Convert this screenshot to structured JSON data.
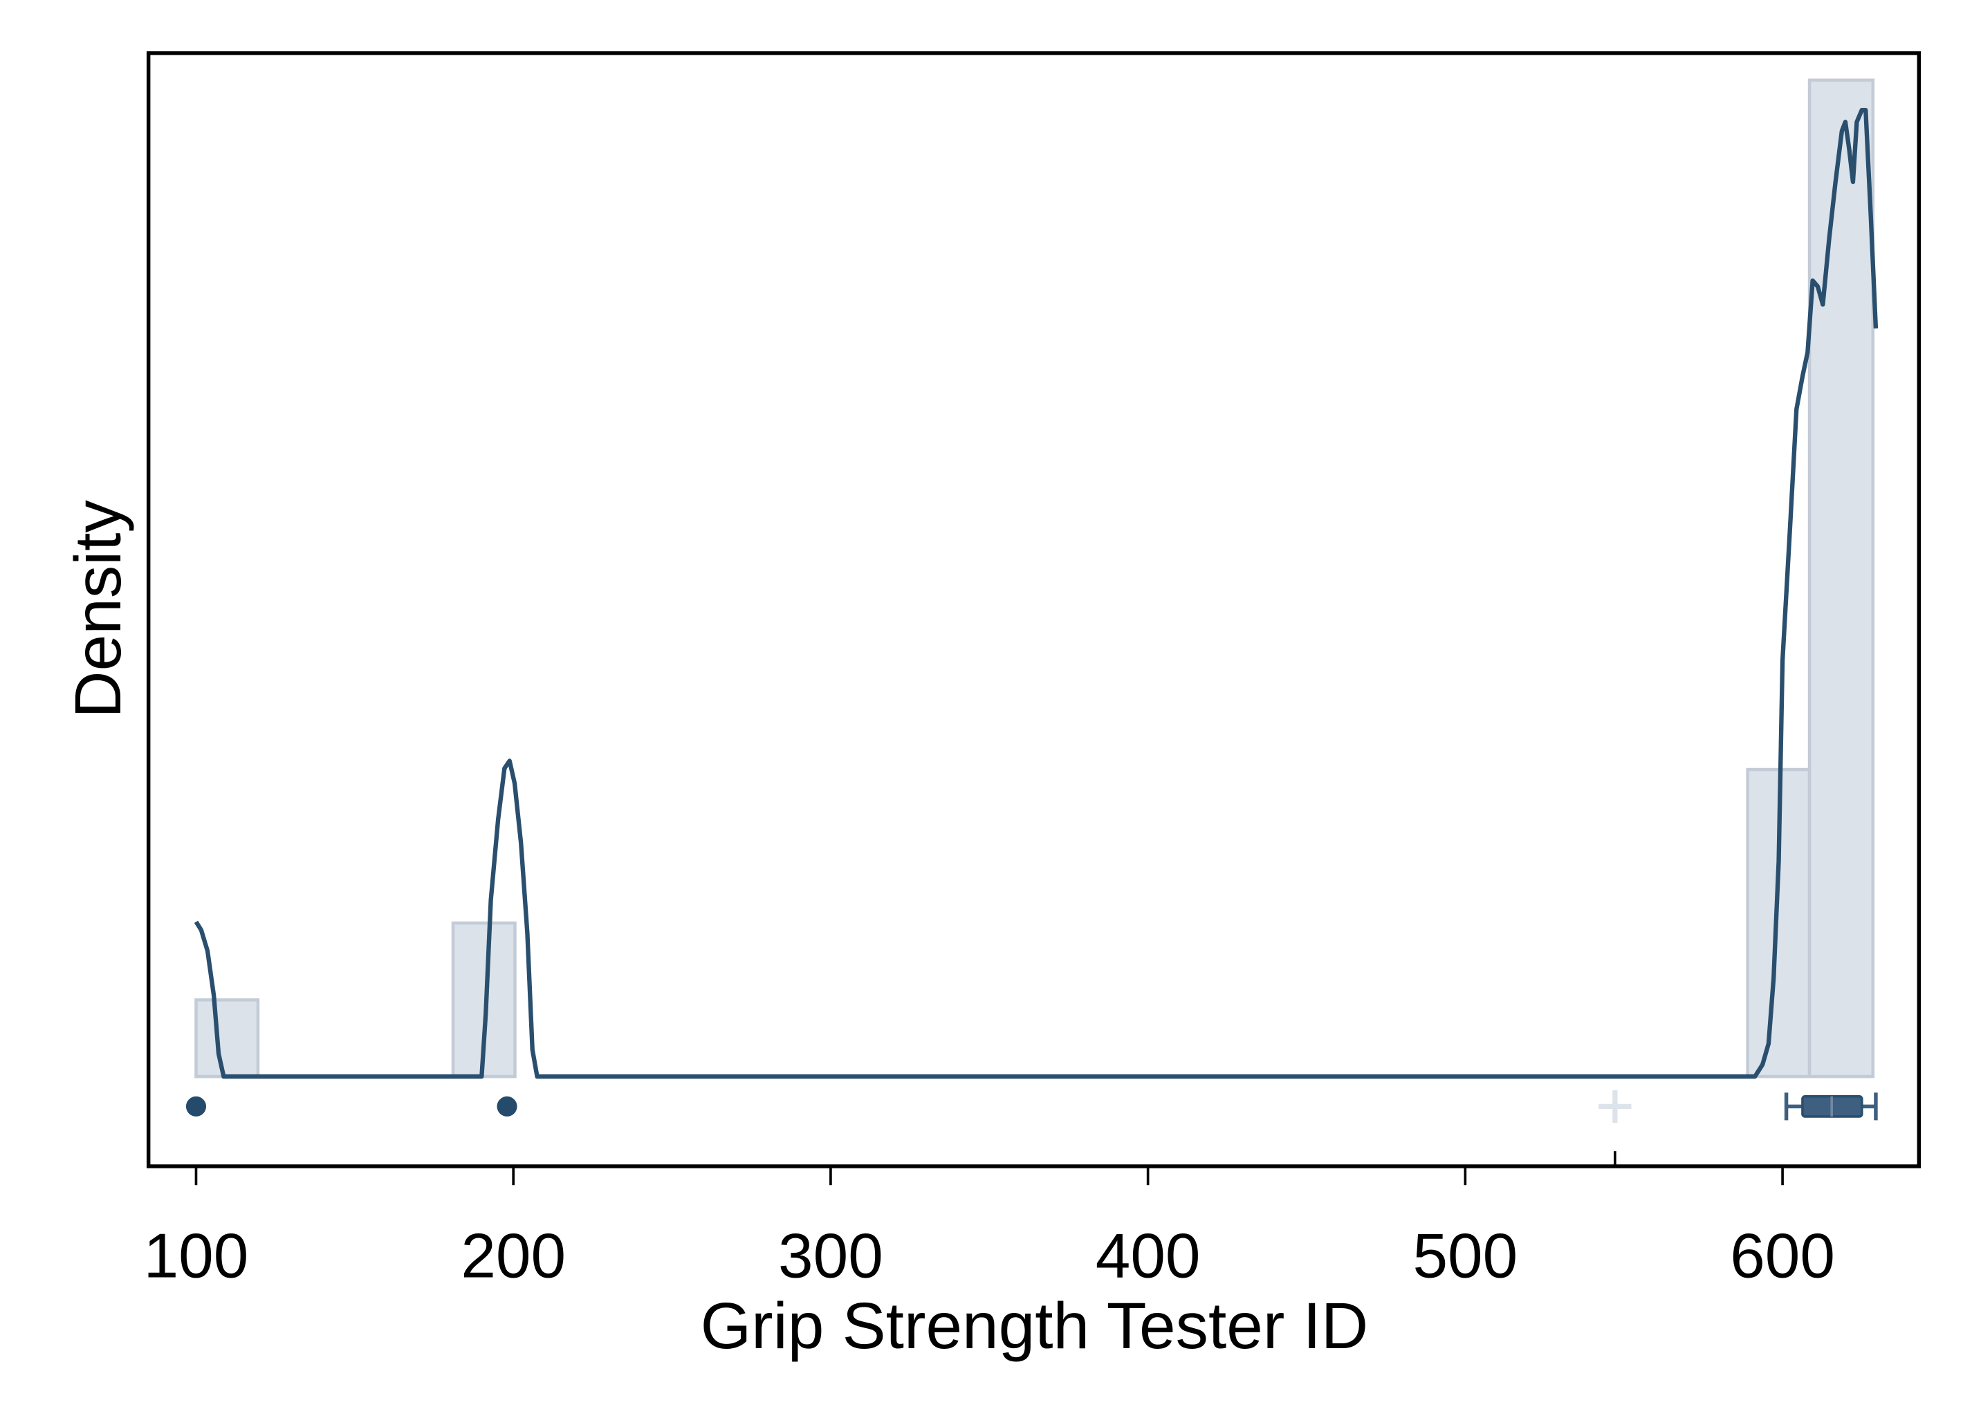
{
  "chart_data": {
    "type": "histogram",
    "x_label": "Grip Strength Tester ID",
    "y_label": "Density",
    "bins": [
      100,
      119.5,
      181,
      200.5,
      589,
      608.5,
      628.5
    ],
    "values": [
      0.00256,
      0,
      0.00513,
      0,
      0.01026,
      0.0333
    ],
    "color": "#dbe2ea",
    "edge_color": "#c3ccd6",
    "kde": {
      "color": "#2a4f6e",
      "x": [
        100,
        101.6,
        103.6,
        105.6,
        107.1,
        108.7,
        190,
        191.3,
        192.9,
        195.2,
        197.2,
        198.8,
        200.4,
        202.4,
        204.4,
        206,
        207.5,
        591.3,
        593.7,
        595.6,
        597.2,
        598.8,
        600,
        602.4,
        604.4,
        606.3,
        607.9,
        609.5,
        611.1,
        612.7,
        614.7,
        616.7,
        618.7,
        619.8,
        621,
        622.2,
        623.4,
        625,
        626.2,
        627.8,
        629.4
      ],
      "values": [
        0.00517,
        0.0049,
        0.0042,
        0.0027,
        0.00076,
        0,
        0,
        0.0021,
        0.0059,
        0.0086,
        0.0103,
        0.01055,
        0.0098,
        0.0078,
        0.0048,
        0.0009,
        0,
        0,
        0.0004,
        0.0011,
        0.0033,
        0.0072,
        0.0139,
        0.0184,
        0.0223,
        0.0234,
        0.0242,
        0.0266,
        0.0264,
        0.0258,
        0.028,
        0.0299,
        0.0316,
        0.0319,
        0.031,
        0.0299,
        0.0319,
        0.0323,
        0.0323,
        0.0288,
        0.025
      ]
    },
    "boxplot": {
      "color": "#3f5f80",
      "mean_color": "#dde3ea",
      "level": -0.001,
      "whisker_low": 601.2,
      "q1": 606.3,
      "median": 615.5,
      "q3": 625,
      "whisker_high": 629.4,
      "outliers": [
        100,
        198
      ],
      "mean": 547.2
    },
    "xlim": [
      85,
      643
    ],
    "ylim": [
      -0.003,
      0.0342
    ],
    "xticks": [
      100,
      200,
      300,
      400,
      500,
      600
    ]
  }
}
